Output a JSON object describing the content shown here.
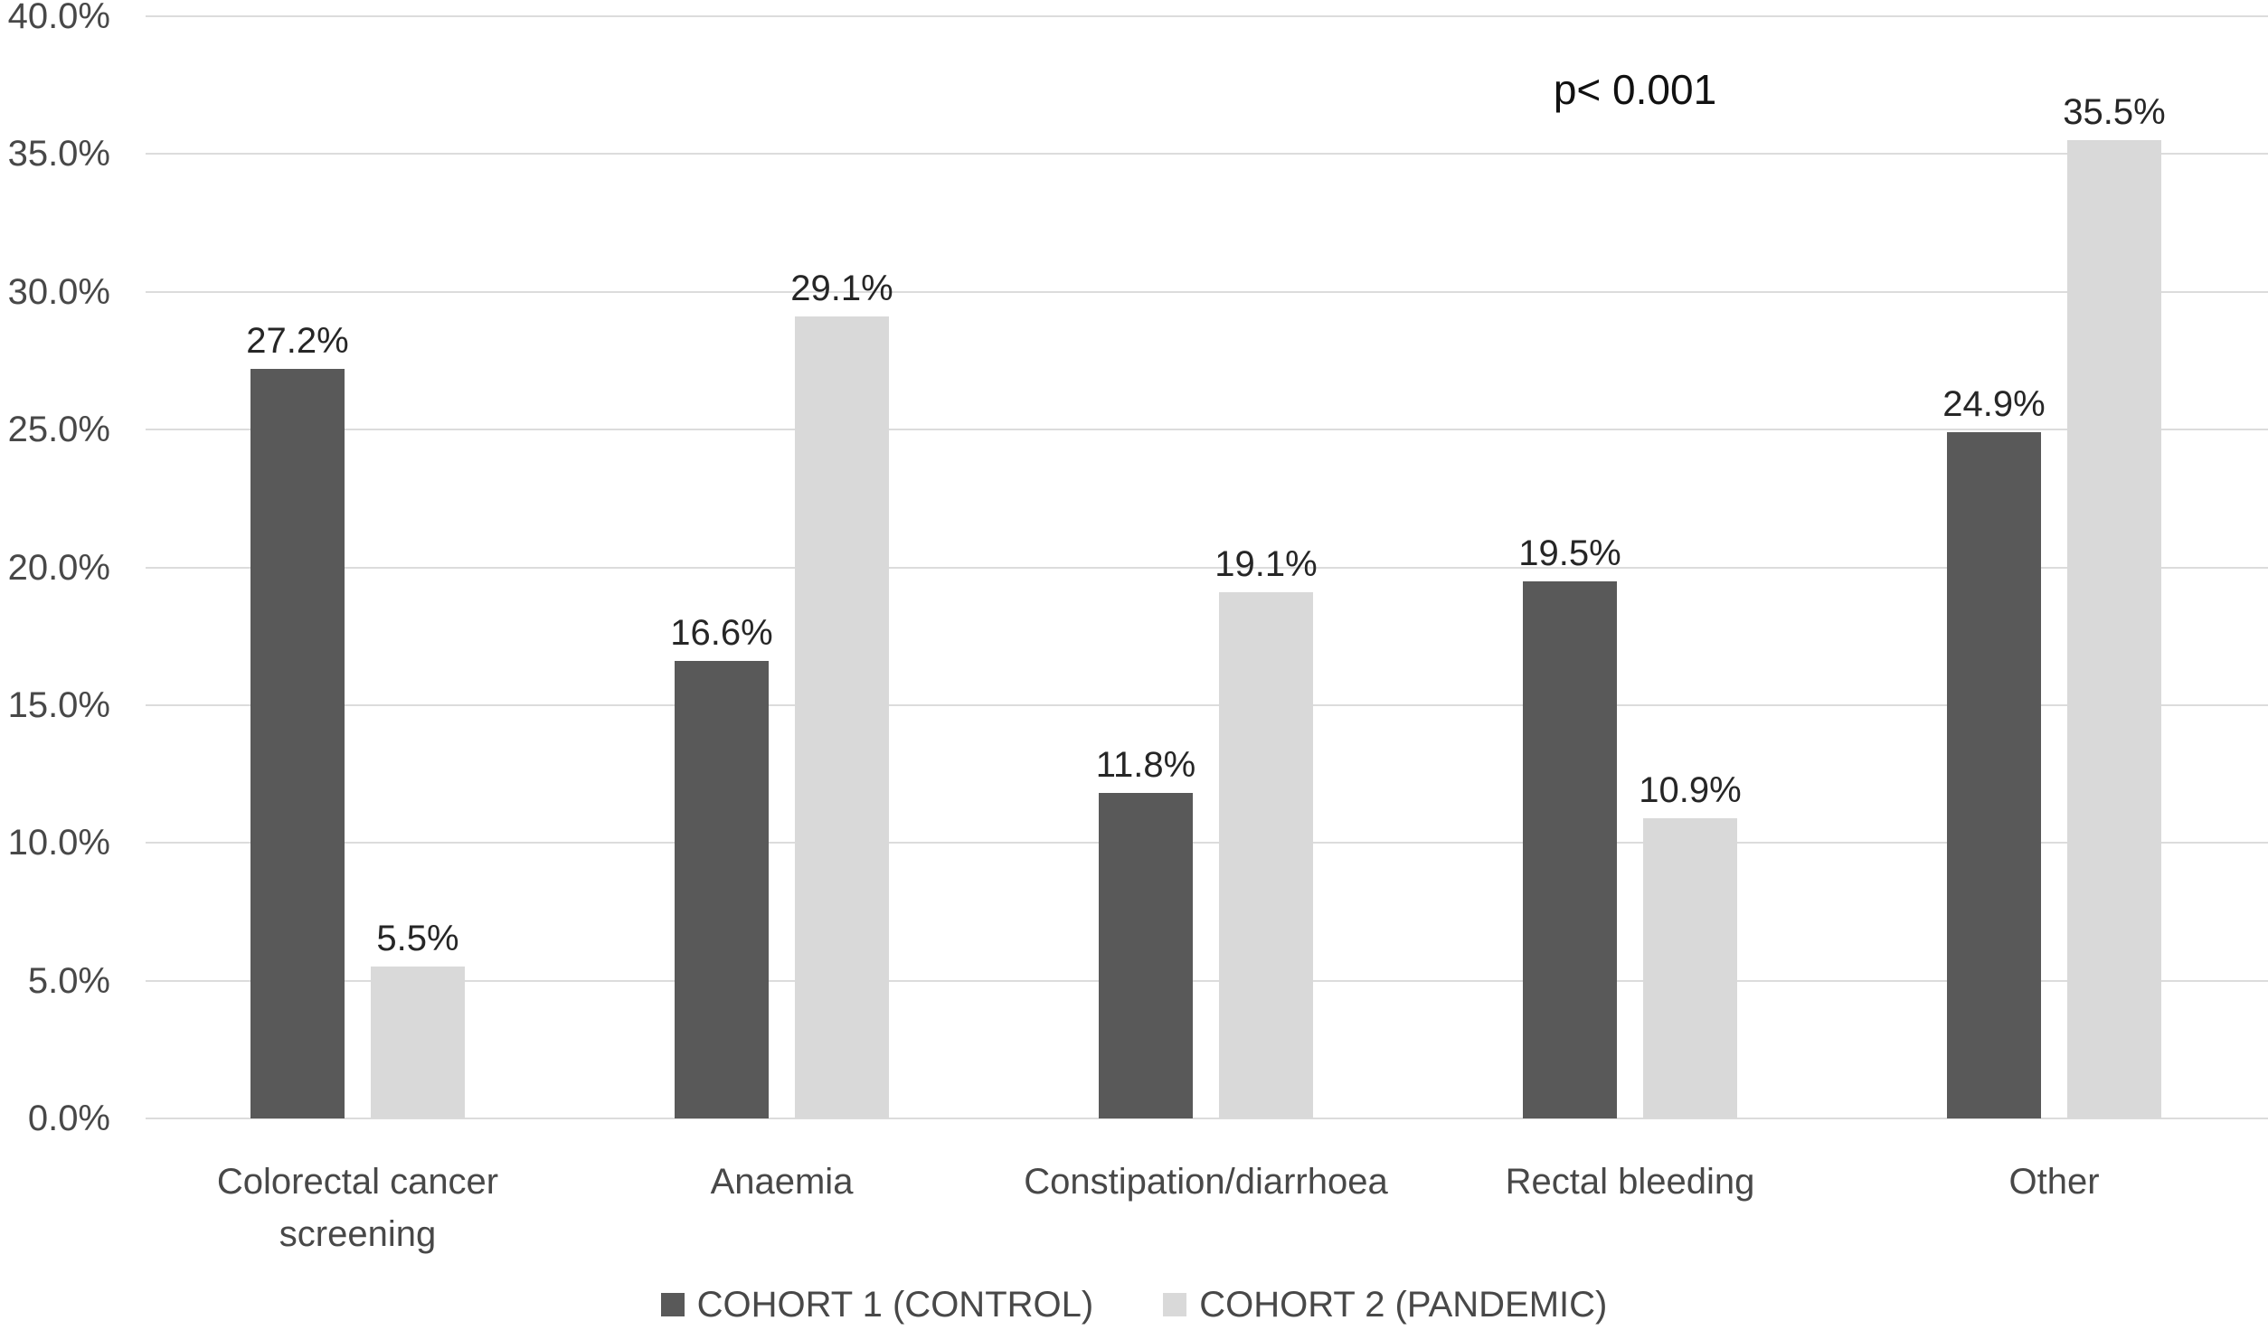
{
  "chart_data": {
    "type": "bar",
    "title": "",
    "xlabel": "",
    "ylabel": "",
    "categories": [
      "Colorectal cancer\nscreening",
      "Anaemia",
      "Constipation/diarrhoea",
      "Rectal bleeding",
      "Other"
    ],
    "series": [
      {
        "name": "COHORT 1 (CONTROL)",
        "color": "#595959",
        "values": [
          27.2,
          16.6,
          11.8,
          19.5,
          24.9
        ],
        "data_labels": [
          "27.2%",
          "16.6%",
          "11.8%",
          "19.5%",
          "24.9%"
        ]
      },
      {
        "name": "COHORT 2 (PANDEMIC)",
        "color": "#d9d9d9",
        "values": [
          5.5,
          29.1,
          19.1,
          10.9,
          35.5
        ],
        "data_labels": [
          "5.5%",
          "29.1%",
          "19.1%",
          "10.9%",
          "35.5%"
        ]
      }
    ],
    "ylim": [
      0,
      40
    ],
    "ytick_interval": 5,
    "ytick_labels": [
      "0.0%",
      "5.0%",
      "10.0%",
      "15.0%",
      "20.0%",
      "25.0%",
      "30.0%",
      "35.0%",
      "40.0%"
    ],
    "annotation": {
      "text": "p< 0.001"
    },
    "grid": true,
    "legend_position": "bottom-center"
  },
  "colors": {
    "bar_series_1": "#595959",
    "bar_series_2": "#d9d9d9",
    "gridline": "#dcdcdc",
    "axis_text": "#484848",
    "data_label_text": "#262626",
    "annotation_text": "#111111",
    "background": "#ffffff"
  }
}
